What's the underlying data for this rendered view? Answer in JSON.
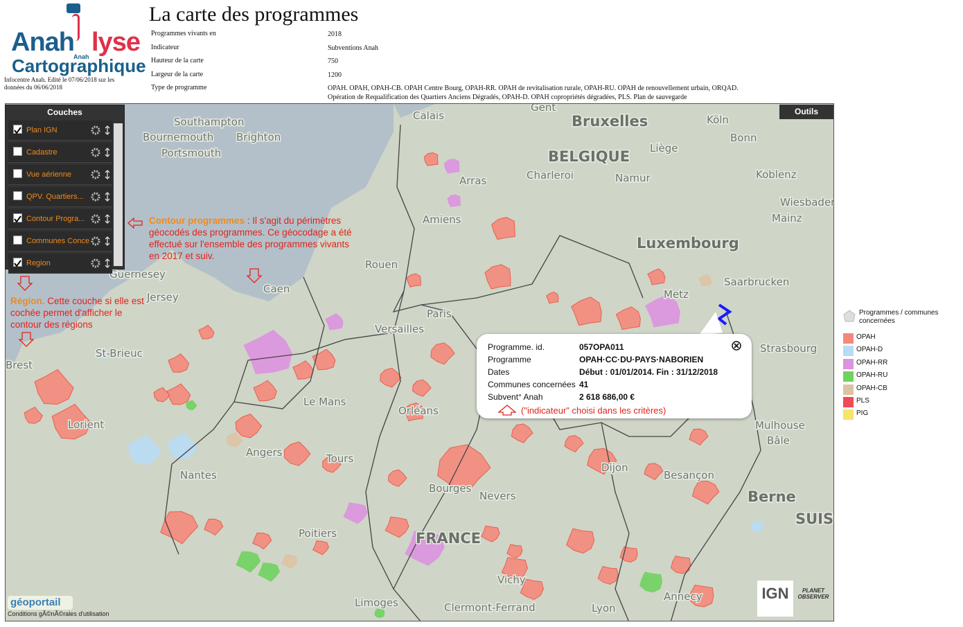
{
  "logo": {
    "brand": "Anah",
    "brand2": "lyse",
    "small": "Anah",
    "sub": "Cartographique"
  },
  "edition": "Infocentre Anah. Edité le 07/06/2018 sur les données du 06/06/2018",
  "header": {
    "title": "La carte des programmes"
  },
  "parameters": [
    {
      "label": "Programmes vivants en",
      "value": "2018"
    },
    {
      "label": "Indicateur",
      "value": "Subventions Anah"
    },
    {
      "label": "Hauteur de la carte",
      "value": "750"
    },
    {
      "label": "Largeur de la carte",
      "value": "1200"
    },
    {
      "label": "Type de programme",
      "value": "OPAH. OPAH, OPAH-CB. OPAH Centre Bourg, OPAH-RR. OPAH de revitalisation rurale, OPAH-RU. OPAH de renouvellement urbain, ORQAD. Opération de Requalification des Quartiers Anciens Dégradés, OPAH-D. OPAH copropriétés dégradées, PLS. Plan de sauvegarde"
    }
  ],
  "layers_panel": {
    "title": "Couches",
    "layers": [
      {
        "name": "Plan IGN",
        "checked": true
      },
      {
        "name": "Cadastre",
        "checked": false
      },
      {
        "name": "Vue aérienne",
        "checked": false
      },
      {
        "name": "QPV. Quartiers...",
        "checked": false
      },
      {
        "name": "Contour Progra...",
        "checked": true
      },
      {
        "name": "Communes Conce",
        "checked": false
      },
      {
        "name": "Region",
        "checked": true
      }
    ]
  },
  "tools_button": "Outils",
  "annotations": {
    "contour": {
      "bold": "Contour programmes",
      "text": " : Il s'agit du périmètres géocodés des programmes. Ce géocodage a été effectué sur l'ensemble des programmes vivants en 2017 et suiv."
    },
    "region": {
      "bold": "Région.",
      "text": " Cette couche si elle est cochée permet d'afficher le contour des régions"
    },
    "indicator": "(\"indicateur\" choisi dans les critères)"
  },
  "popup": {
    "rows": [
      {
        "label": "Programme. id.",
        "value": "057OPA011"
      },
      {
        "label": "Programme",
        "value": "OPAH·CC·DU·PAYS·NABORIEN"
      },
      {
        "label": "Dates",
        "value": "Début : 01/01/2014. Fin : 31/12/2018"
      },
      {
        "label": "Communes concernées",
        "value": "41"
      },
      {
        "label": "Subvent° Anah",
        "value": "2 618 686,00 €"
      }
    ]
  },
  "legend": {
    "title": "Programmes / communes concernées",
    "items": [
      {
        "name": "OPAH",
        "color": "#f4897b"
      },
      {
        "name": "OPAH-D",
        "color": "#b8dcf4"
      },
      {
        "name": "OPAH-RR",
        "color": "#dc93e0"
      },
      {
        "name": "OPAH-RU",
        "color": "#6fd35f"
      },
      {
        "name": "OPAH-CB",
        "color": "#dec3a3"
      },
      {
        "name": "PLS",
        "color": "#f04a55"
      },
      {
        "name": "PIG",
        "color": "#f6e46c"
      }
    ]
  },
  "map_labels": [
    "Calais",
    "Gent",
    "Bruxelles",
    "Southampton",
    "Bournemouth",
    "Brighton",
    "Portsmouth",
    "BELGIQUE",
    "Liège",
    "Köln",
    "Bonn",
    "Charleroi",
    "Namur",
    "Arras",
    "Koblenz",
    "Wiesbaden",
    "Mainz",
    "Amiens",
    "Luxembourg",
    "Rouen",
    "Guernesey",
    "Saarbrucken",
    "Caen",
    "Jersey",
    "Metz",
    "Paris",
    "Versailles",
    "St-Brieuc",
    "Strasbourg",
    "Brest",
    "Le Mans",
    "Orléans",
    "Lorient",
    "Mulhouse",
    "Bâle",
    "Angers",
    "Tours",
    "Dijon",
    "Nantes",
    "Besançon",
    "Bourges",
    "Nevers",
    "Berne",
    "Poitiers",
    "FRANCE",
    "SUISSE",
    "Vichy",
    "Limoges",
    "Clermont-Ferrand",
    "Lyon",
    "Annecy"
  ],
  "footer": {
    "geoportail": "géoportail",
    "terms": "Conditions gÃ©nÃ©rales d'utilisation",
    "ign": "IGN",
    "planet": "PLANET OBSERVER"
  }
}
